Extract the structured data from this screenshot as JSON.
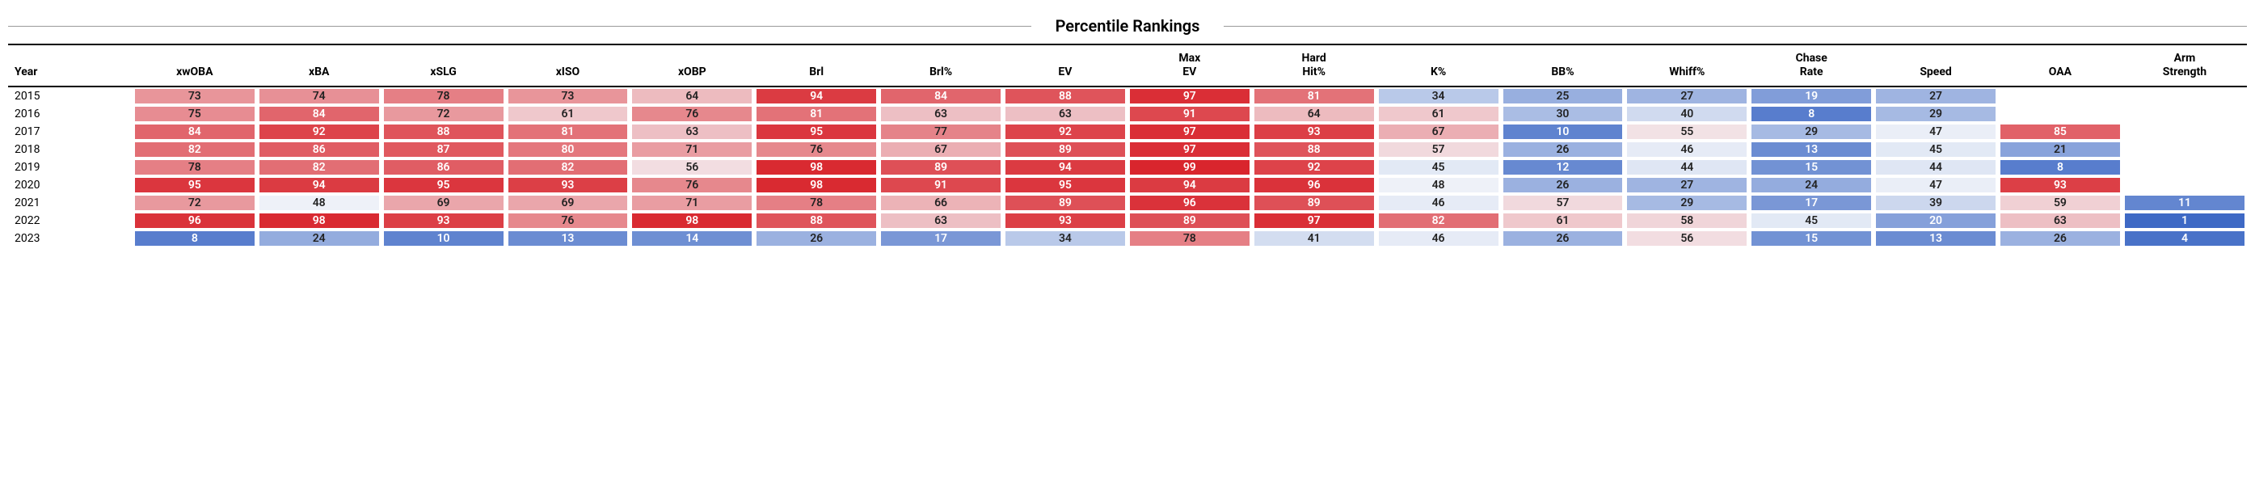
{
  "title": "Percentile Rankings",
  "color_scale": {
    "low_color": "#3a66c4",
    "mid_color": "#f5f7fa",
    "high_color": "#d82129",
    "text_on_extreme": "#ffffff",
    "text_on_mid": "#222222"
  },
  "columns": [
    "Year",
    "xwOBA",
    "xBA",
    "xSLG",
    "xISO",
    "xOBP",
    "Brl",
    "Brl%",
    "EV",
    "Max EV",
    "Hard Hit%",
    "K%",
    "BB%",
    "Whiff%",
    "Chase Rate",
    "Speed",
    "OAA",
    "Arm Strength"
  ],
  "rows": [
    {
      "year": "2015",
      "values": [
        73,
        74,
        78,
        73,
        64,
        94,
        84,
        88,
        97,
        81,
        34,
        25,
        27,
        19,
        27,
        null,
        null
      ]
    },
    {
      "year": "2016",
      "values": [
        75,
        84,
        72,
        61,
        76,
        81,
        63,
        63,
        91,
        64,
        61,
        30,
        40,
        8,
        29,
        null,
        null
      ]
    },
    {
      "year": "2017",
      "values": [
        84,
        92,
        88,
        81,
        63,
        95,
        77,
        92,
        97,
        93,
        67,
        10,
        55,
        29,
        47,
        85,
        null
      ]
    },
    {
      "year": "2018",
      "values": [
        82,
        86,
        87,
        80,
        71,
        76,
        67,
        89,
        97,
        88,
        57,
        26,
        46,
        13,
        45,
        21,
        null
      ]
    },
    {
      "year": "2019",
      "values": [
        78,
        82,
        86,
        82,
        56,
        98,
        89,
        94,
        99,
        92,
        45,
        12,
        44,
        15,
        44,
        8,
        null
      ]
    },
    {
      "year": "2020",
      "values": [
        95,
        94,
        95,
        93,
        76,
        98,
        91,
        95,
        94,
        96,
        48,
        26,
        27,
        24,
        47,
        93,
        null
      ]
    },
    {
      "year": "2021",
      "values": [
        72,
        48,
        69,
        69,
        71,
        78,
        66,
        89,
        96,
        89,
        46,
        57,
        29,
        17,
        39,
        59,
        11
      ]
    },
    {
      "year": "2022",
      "values": [
        96,
        98,
        93,
        76,
        98,
        88,
        63,
        93,
        89,
        97,
        82,
        61,
        58,
        45,
        20,
        63,
        1
      ]
    },
    {
      "year": "2023",
      "values": [
        8,
        24,
        10,
        13,
        14,
        26,
        17,
        34,
        78,
        41,
        46,
        26,
        56,
        15,
        13,
        26,
        4
      ]
    }
  ]
}
